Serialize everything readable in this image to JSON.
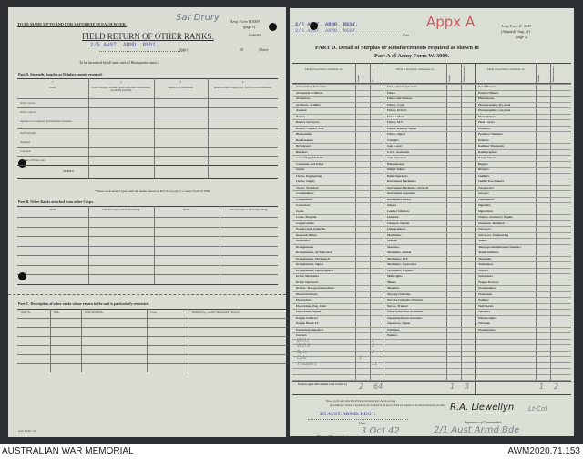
{
  "left_page": {
    "top_instruction": "TO BE MADE UP TO AND FOR SATURDAY IN EACH WEEK.",
    "handwritten_top": "Sar Drury",
    "form_id": "Army Form W.3009",
    "form_page": "(page 1)",
    "adapted": "(Adapted)",
    "title": "FIELD RETURN OF OTHER RANKS.",
    "unit_stamp": "2/5 AUST. ARMD. REGT.",
    "unit_label": "(Unit)",
    "year_prefix": "19",
    "date_label": "(Date).",
    "subtitle": "To be furnished by all units and all Headquarter units.)",
    "part_a_title": "Part A.   Strength, Surplus or Reinforcements required.",
    "part_a_col_numbers": [
      "1",
      "2",
      "3",
      "4"
    ],
    "part_a_headers": [
      "Detail.",
      "Posted strength counting against authorised establishment (excluding attached).",
      "Surplus to Establishment.",
      "Reinforcements required (i.e., deficits on establishment)."
    ],
    "part_a_rows": [
      "W.Os. Class I.",
      "W.Os. Class II.",
      "Squadron or Company Quartermaster-Serjeants",
      "Staff Serjeants",
      "Serjeants",
      "Corporals",
      "Troopers, Privates, &c."
    ],
    "totals_label": "TOTALS",
    "totals_note": "*These totals should agree with the details shown in Part D on page 2 of Army Form W.3009.",
    "part_b_title": "Part B.   Other Ranks attached from other Corps.",
    "part_b_headers": [
      "Detail.",
      "Unit and Corps to which they belong.",
      "Detail.",
      "Unit and Corps to which they belong."
    ],
    "part_c_title": "Part C.   Description of other ranks whose return to the unit is particularly requested.",
    "part_c_headers": [
      "Army No.",
      "Rank.",
      "Name and Initials.",
      "Corps.",
      "Remarks (e.g., present whereabouts if known)."
    ],
    "footer_print": "A.W. 3rd Ed. 7/41"
  },
  "right_page": {
    "unit_stamp_1": "2/5 AUST. ARMD. REGT.",
    "unit_stamp_2": "2/5 AUST. ARMD. REGT.",
    "unit_label": "Unit.",
    "handwritten_appx": "Appx A",
    "form_id": "Army Form W. 3009",
    "form_adapted": "(Adapted) (Aug. 41)",
    "form_page": "(page 2)",
    "title_line1": "PART D.   Detail of Surplus or Reinforcements required as shown in",
    "title_line2": "Part A of Army Form W. 3009.",
    "col_header": "Detail of Specialists, Tradesmen, etc.",
    "num_headers": [
      "Surplus",
      "Reinforcements Required"
    ],
    "columns": [
      [
        "Ammunition Examiners",
        "Armament Artificers",
        "Armourers",
        "Artificers, Artillery",
        "Axemen",
        "Bakers",
        "Battery Surveyors",
        "Battery Comdrs. Asst.",
        "Blacksmiths",
        "Boilermakers",
        "Bricklayers",
        "Butchers",
        "Camouflage Modeller",
        "Carpenter and Joiner",
        "Clerks",
        "Clerks, Engineering",
        "Clerks, Supply",
        "Clerks, Technical",
        "Coachmakers",
        "Compositors",
        "Concreters",
        "Cooks",
        "Cooks, Hospital",
        "Coppersmiths",
        "Dental Clerk Orderlies",
        "Despatch Riders",
        "Dispensers",
        "Draughtsmen",
        "Draughtsmen, Architectural",
        "Draughtsmen, Mechanical",
        "Draughtsmen, Signal",
        "Draughtsmen, Topographical",
        "Driver Mechanics",
        "Driver Operators",
        "Drivers, Transportation Plant",
        "Electrical Fitters",
        "Electricians",
        "Electricians, Eng. Units",
        "Electricians, Signal",
        "Engine Artificers",
        "Engine Hands I/C",
        "Equipment Repairers",
        "Farriers"
      ],
      [
        "Fire Control Operators",
        "Fitters",
        "Fitters and Turners",
        "Fitters, Cycle",
        "Fitters, Drivers",
        "Fitter's Mates",
        "Fitters, M.T.",
        "Fitters, Railway Signal",
        "Fitters, Signal",
        "Grinders",
        "Gun Layers",
        "G.P.O. Assistants",
        "Gun Operators",
        "Hammermen",
        "Height Takers",
        "Helio Operators",
        "Instrument Mechanics",
        "Instrument Mechanics, Surgical",
        "Instrument Operators",
        "Intelligence Duties",
        "Joiners",
        "Leather Stitchers",
        "Linemen",
        "Linemen, Signals",
        "Lithographers",
        "Machinists",
        "Masons",
        "Masseurs",
        "Mechanics, Dental",
        "Mechanics, M.T.",
        "Mechanics, Typewriter",
        "Mechanics, Wireless",
        "Millwrights",
        "Miners",
        "Moulders",
        "Nursing Orderlies",
        "Nursing Orderlies (Mental)",
        "Nurses, Trained",
        "Observation Post Assistants",
        "Operating Room Assistants",
        "Operators, Signal",
        "Opticians",
        "Painters"
      ],
      [
        "Panel Beaters",
        "Pattern Makers",
        "Pharmacists",
        "Photographers, dry plate",
        "Photographers, wet plate",
        "Plate-Writers",
        "Plate Layers",
        "Plumbers",
        "Predictor Numbers",
        "Printers",
        "Radiator Mechanics",
        "Radiographers",
        "Range Takers",
        "Riggers",
        "Riveters",
        "Saddlers",
        "Saddle Tree Makers",
        "San Doctors",
        "Sawyers",
        "Shoemakers",
        "Signallers",
        "Signwriters",
        "Stokers, Stationary Engine",
        "Storemen, Technical",
        "Surveyors",
        "Surveyors, Engineering",
        "Tailors",
        "Telescope Identification Numbers",
        "Textile Refitters",
        "Tinsmiths",
        "Toolmakers",
        "Turners",
        "Vulcanisers",
        "Wagon Erectors",
        "Watchmakers",
        "Watermen",
        "Welders",
        "Well Borers",
        "Wheelers",
        "Wheelwrights",
        "Wiremen",
        "Woodturners"
      ]
    ],
    "handwritten_rows": [
      {
        "label": "W.O.I",
        "reinf": "1"
      },
      {
        "label": "W.O.II",
        "reinf": "2"
      },
      {
        "label": "Sgts",
        "reinf": "2"
      },
      {
        "label": "Cpls",
        "surplus": "1",
        "reinf": ""
      },
      {
        "label": "Troopers",
        "reinf": "11"
      }
    ],
    "totals_label": "Totals (to agree with Columns 3 and 4 of Part A.)",
    "totals": [
      [
        "2",
        "64"
      ],
      [
        "1",
        "3"
      ],
      [
        "1",
        "2"
      ]
    ],
    "note_a": "Note—(a) If rank other than Private is involved give details on back.",
    "note_b": "(b) Additional Trades or Specialists not included in list above which are required to be entered in spaces provided.",
    "unit_stamp_bottom": "2/5 AUST. ARMD. REGT.",
    "unit_caption": "Unit.",
    "signature": "R.A. Llewellyn",
    "signature_rank": "Lt-Col",
    "signature_caption": "Signature of Commander.",
    "despatch_label": "Date of Despatch",
    "despatch_date": "3 Oct 42",
    "formation_handwritten": "2/1 Aust Armd Bde",
    "formation_caption": "Bde., Divn., Area, etc., with which unit is serving."
  },
  "captions": {
    "left": "AUSTRALIAN WAR MEMORIAL",
    "right": "AWM2020.71.153"
  }
}
